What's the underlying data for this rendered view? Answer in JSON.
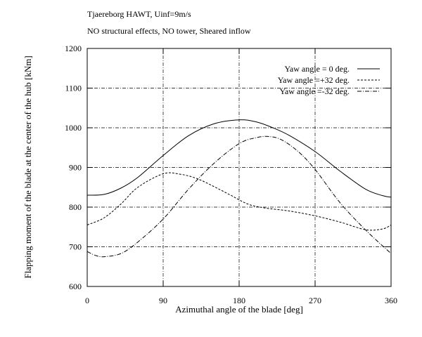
{
  "header": {
    "line1": "Tjaereborg HAWT, Uinf=9m/s",
    "line2": "NO structural effects, NO tower, Sheared inflow"
  },
  "chart_data": {
    "type": "line",
    "title": "",
    "xlabel": "Azimuthal angle of the blade [deg]",
    "ylabel": "Flapping moment of the blade at the center of the hub [kNm]",
    "xlim": [
      0,
      360
    ],
    "ylim": [
      600,
      1200
    ],
    "xticks": [
      0,
      90,
      180,
      270,
      360
    ],
    "yticks": [
      600,
      700,
      800,
      900,
      1000,
      1100,
      1200
    ],
    "xtick_labels": [
      "0",
      "90",
      "180",
      "270",
      "360"
    ],
    "ytick_labels": [
      "600",
      "700",
      "800",
      "900",
      "1000",
      "1100",
      "1200"
    ],
    "grid": true,
    "legend_position": "top-right",
    "series": [
      {
        "name": "Yaw angle =  0 deg.",
        "style": "solid",
        "x": [
          0,
          20,
          40,
          60,
          90,
          120,
          150,
          180,
          200,
          220,
          240,
          270,
          300,
          330,
          350,
          360
        ],
        "y": [
          830,
          832,
          848,
          875,
          930,
          980,
          1010,
          1020,
          1015,
          1000,
          980,
          940,
          890,
          845,
          829,
          825
        ]
      },
      {
        "name": "Yaw angle =+32 deg.",
        "style": "dashed",
        "x": [
          0,
          20,
          40,
          60,
          90,
          110,
          130,
          150,
          170,
          190,
          210,
          240,
          270,
          300,
          330,
          350,
          360
        ],
        "y": [
          755,
          773,
          808,
          850,
          884,
          883,
          872,
          852,
          830,
          808,
          798,
          790,
          778,
          762,
          743,
          745,
          755
        ]
      },
      {
        "name": "Yaw angle =-32 deg.",
        "style": "dashdot",
        "x": [
          0,
          10,
          20,
          40,
          60,
          90,
          120,
          150,
          180,
          200,
          215,
          230,
          250,
          270,
          300,
          330,
          360
        ],
        "y": [
          688,
          678,
          675,
          683,
          712,
          770,
          845,
          910,
          960,
          975,
          978,
          970,
          940,
          895,
          810,
          742,
          683
        ]
      }
    ]
  }
}
